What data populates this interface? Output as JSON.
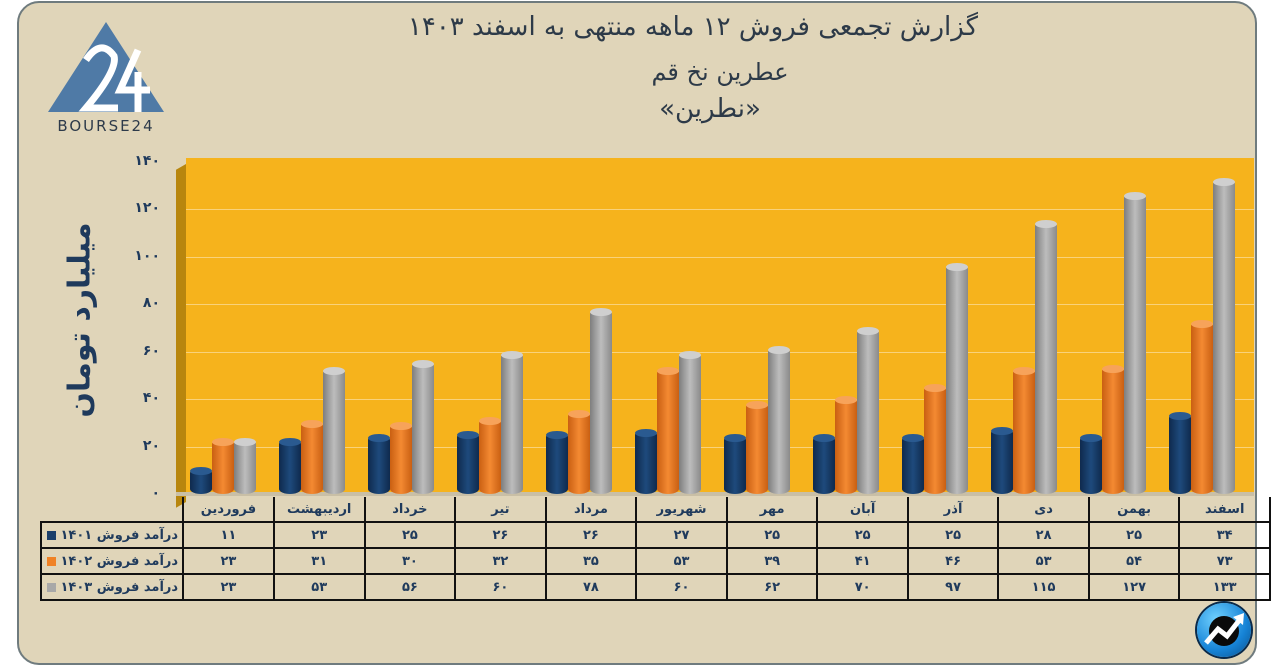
{
  "brand": {
    "logo_text": "BOURSE24",
    "logo_numeral": "24"
  },
  "header": {
    "title_line1": "گزارش تجمعی فروش ۱۲ ماهه منتهی به اسفند ۱۴۰۳",
    "title_line2": "عطرین نخ قم",
    "title_line3": "«نطرین»"
  },
  "axis": {
    "ylabel": "میلیارد تومان",
    "ticks": [
      "۱۴۰",
      "۱۲۰",
      "۱۰۰",
      "۸۰",
      "۶۰",
      "۴۰",
      "۲۰",
      "۰"
    ]
  },
  "colors": {
    "s1401": "#1b3f6b",
    "s1402": "#f08226",
    "s1403": "#a8a8a8",
    "wall": "#f6b31c",
    "background": "#e0d5b9"
  },
  "table": {
    "months": [
      "فروردین",
      "اردیبهشت",
      "خرداد",
      "تیر",
      "مرداد",
      "شهریور",
      "مهر",
      "آبان",
      "آذر",
      "دی",
      "بهمن",
      "اسفند"
    ],
    "rows": [
      {
        "label": "درآمد فروش ۱۴۰۱",
        "values": [
          "۱۱",
          "۲۳",
          "۲۵",
          "۲۶",
          "۲۶",
          "۲۷",
          "۲۵",
          "۲۵",
          "۲۵",
          "۲۸",
          "۲۵",
          "۳۴"
        ]
      },
      {
        "label": "درآمد فروش ۱۴۰۲",
        "values": [
          "۲۳",
          "۳۱",
          "۳۰",
          "۳۲",
          "۳۵",
          "۵۳",
          "۳۹",
          "۴۱",
          "۴۶",
          "۵۳",
          "۵۴",
          "۷۳"
        ]
      },
      {
        "label": "درآمد فروش ۱۴۰۳",
        "values": [
          "۲۳",
          "۵۳",
          "۵۶",
          "۶۰",
          "۷۸",
          "۶۰",
          "۶۲",
          "۷۰",
          "۹۷",
          "۱۱۵",
          "۱۲۷",
          "۱۳۳"
        ]
      }
    ]
  },
  "chart_data": {
    "type": "bar",
    "title": "گزارش تجمعی فروش ۱۲ ماهه منتهی به اسفند ۱۴۰۳ - عطرین نخ قم «نطرین»",
    "xlabel": "",
    "ylabel": "میلیارد تومان",
    "ylim": [
      0,
      140
    ],
    "grid": true,
    "legend_position": "table-left",
    "categories": [
      "فروردین",
      "اردیبهشت",
      "خرداد",
      "تیر",
      "مرداد",
      "شهریور",
      "مهر",
      "آبان",
      "آذر",
      "دی",
      "بهمن",
      "اسفند"
    ],
    "series": [
      {
        "name": "درآمد فروش ۱۴۰۱",
        "values": [
          11,
          23,
          25,
          26,
          26,
          27,
          25,
          25,
          25,
          28,
          25,
          34
        ]
      },
      {
        "name": "درآمد فروش ۱۴۰۲",
        "values": [
          23,
          31,
          30,
          32,
          35,
          53,
          39,
          41,
          46,
          53,
          54,
          73
        ]
      },
      {
        "name": "درآمد فروش ۱۴۰۳",
        "values": [
          23,
          53,
          56,
          60,
          78,
          60,
          62,
          70,
          97,
          115,
          127,
          133
        ]
      }
    ]
  }
}
